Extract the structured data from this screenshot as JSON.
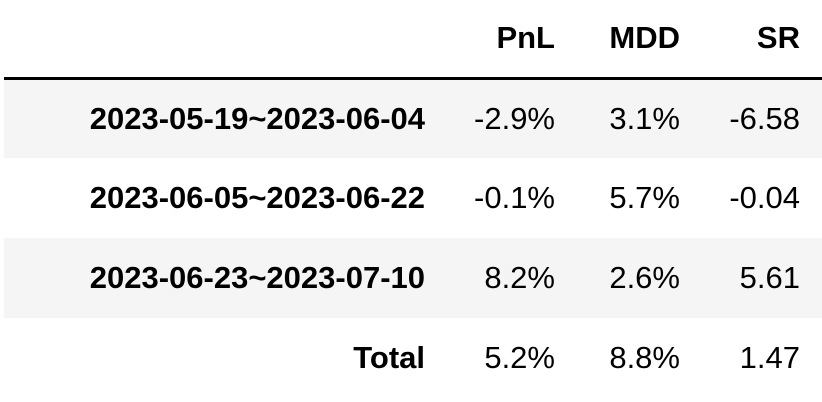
{
  "table": {
    "columns": [
      "",
      "PnL",
      "MDD",
      "SR"
    ],
    "rows": [
      {
        "label": "2023-05-19~2023-06-04",
        "pnl": "-2.9%",
        "mdd": "3.1%",
        "sr": "-6.58"
      },
      {
        "label": "2023-06-05~2023-06-22",
        "pnl": "-0.1%",
        "mdd": "5.7%",
        "sr": "-0.04"
      },
      {
        "label": "2023-06-23~2023-07-10",
        "pnl": "8.2%",
        "mdd": "2.6%",
        "sr": "5.61"
      },
      {
        "label": "Total",
        "pnl": "5.2%",
        "mdd": "8.8%",
        "sr": "1.47"
      }
    ]
  }
}
